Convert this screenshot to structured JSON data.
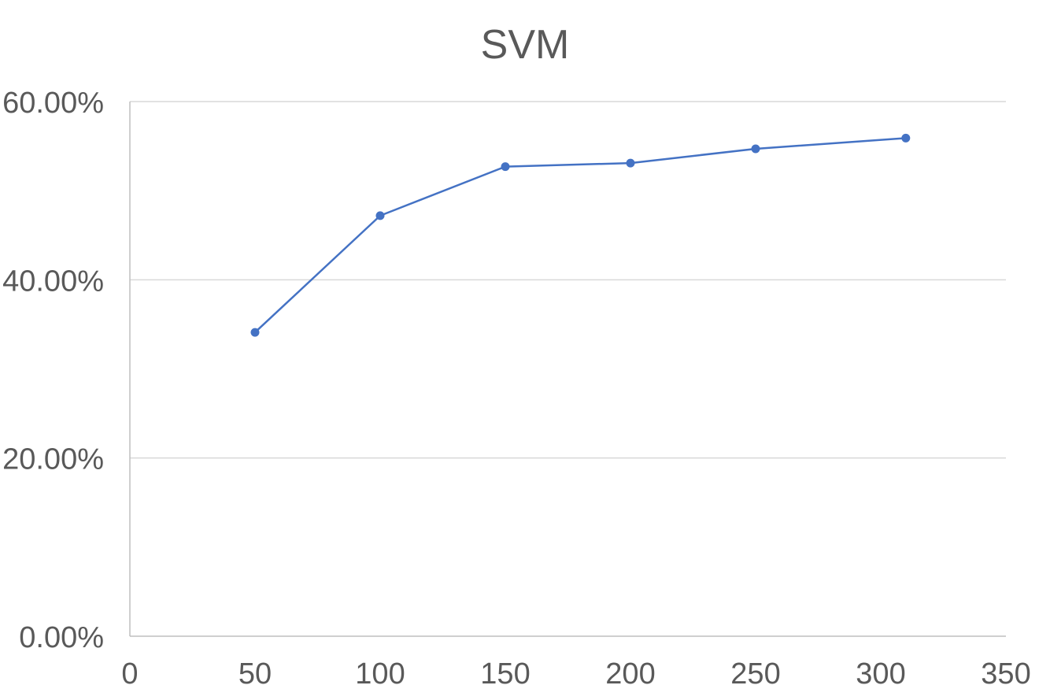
{
  "chart_data": {
    "type": "line",
    "title": "SVM",
    "xlabel": "",
    "ylabel": "",
    "x": [
      50,
      100,
      150,
      200,
      250,
      310
    ],
    "series": [
      {
        "values": [
          0.341,
          0.472,
          0.527,
          0.531,
          0.547,
          0.559
        ]
      }
    ],
    "xlim": [
      0,
      350
    ],
    "ylim": [
      0,
      0.6
    ],
    "x_ticks": [
      0,
      50,
      100,
      150,
      200,
      250,
      300,
      350
    ],
    "x_tick_labels": [
      "0",
      "50",
      "100",
      "150",
      "200",
      "250",
      "300",
      "350"
    ],
    "y_ticks": [
      0,
      0.2,
      0.4,
      0.6
    ],
    "y_tick_labels": [
      "0.00%",
      "20.00%",
      "40.00%",
      "60.00%"
    ],
    "grid": true,
    "legend": "none",
    "colors": {
      "series": "#4472c4",
      "grid": "#d9d9d9",
      "axis": "#bfbfbf",
      "text": "#595959"
    }
  }
}
